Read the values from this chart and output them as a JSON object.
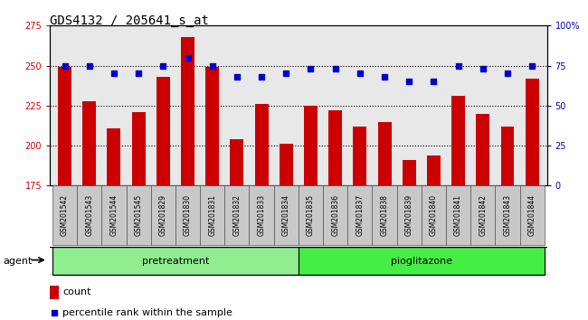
{
  "title": "GDS4132 / 205641_s_at",
  "samples": [
    "GSM201542",
    "GSM201543",
    "GSM201544",
    "GSM201545",
    "GSM201829",
    "GSM201830",
    "GSM201831",
    "GSM201832",
    "GSM201833",
    "GSM201834",
    "GSM201835",
    "GSM201836",
    "GSM201837",
    "GSM201838",
    "GSM201839",
    "GSM201840",
    "GSM201841",
    "GSM201842",
    "GSM201843",
    "GSM201844"
  ],
  "counts": [
    249,
    228,
    211,
    221,
    243,
    268,
    249,
    204,
    226,
    201,
    225,
    222,
    212,
    215,
    191,
    194,
    231,
    220,
    212,
    242
  ],
  "percentiles": [
    75,
    75,
    70,
    70,
    75,
    80,
    75,
    68,
    68,
    70,
    73,
    73,
    70,
    68,
    65,
    65,
    75,
    73,
    70,
    75
  ],
  "group_labels": [
    "pretreatment",
    "pioglitazone"
  ],
  "group1_color": "#90EE90",
  "group2_color": "#44EE44",
  "group1_count": 10,
  "group2_count": 10,
  "bar_color": "#CC0000",
  "dot_color": "#0000CC",
  "ylim_left": [
    175,
    275
  ],
  "ylim_right": [
    0,
    100
  ],
  "yticks_left": [
    175,
    200,
    225,
    250,
    275
  ],
  "yticks_right": [
    0,
    25,
    50,
    75,
    100
  ],
  "ytick_labels_right": [
    "0",
    "25",
    "50",
    "75",
    "100%"
  ],
  "grid_values": [
    200,
    225,
    250
  ],
  "agent_label": "agent",
  "legend_count": "count",
  "legend_percentile": "percentile rank within the sample",
  "bar_width": 0.55,
  "title_fontsize": 10,
  "tick_fontsize": 7,
  "label_fontsize": 8,
  "sample_fontsize": 5.5,
  "plot_bg": "#E8E8E8",
  "sample_box_color": "#C8C8C8"
}
